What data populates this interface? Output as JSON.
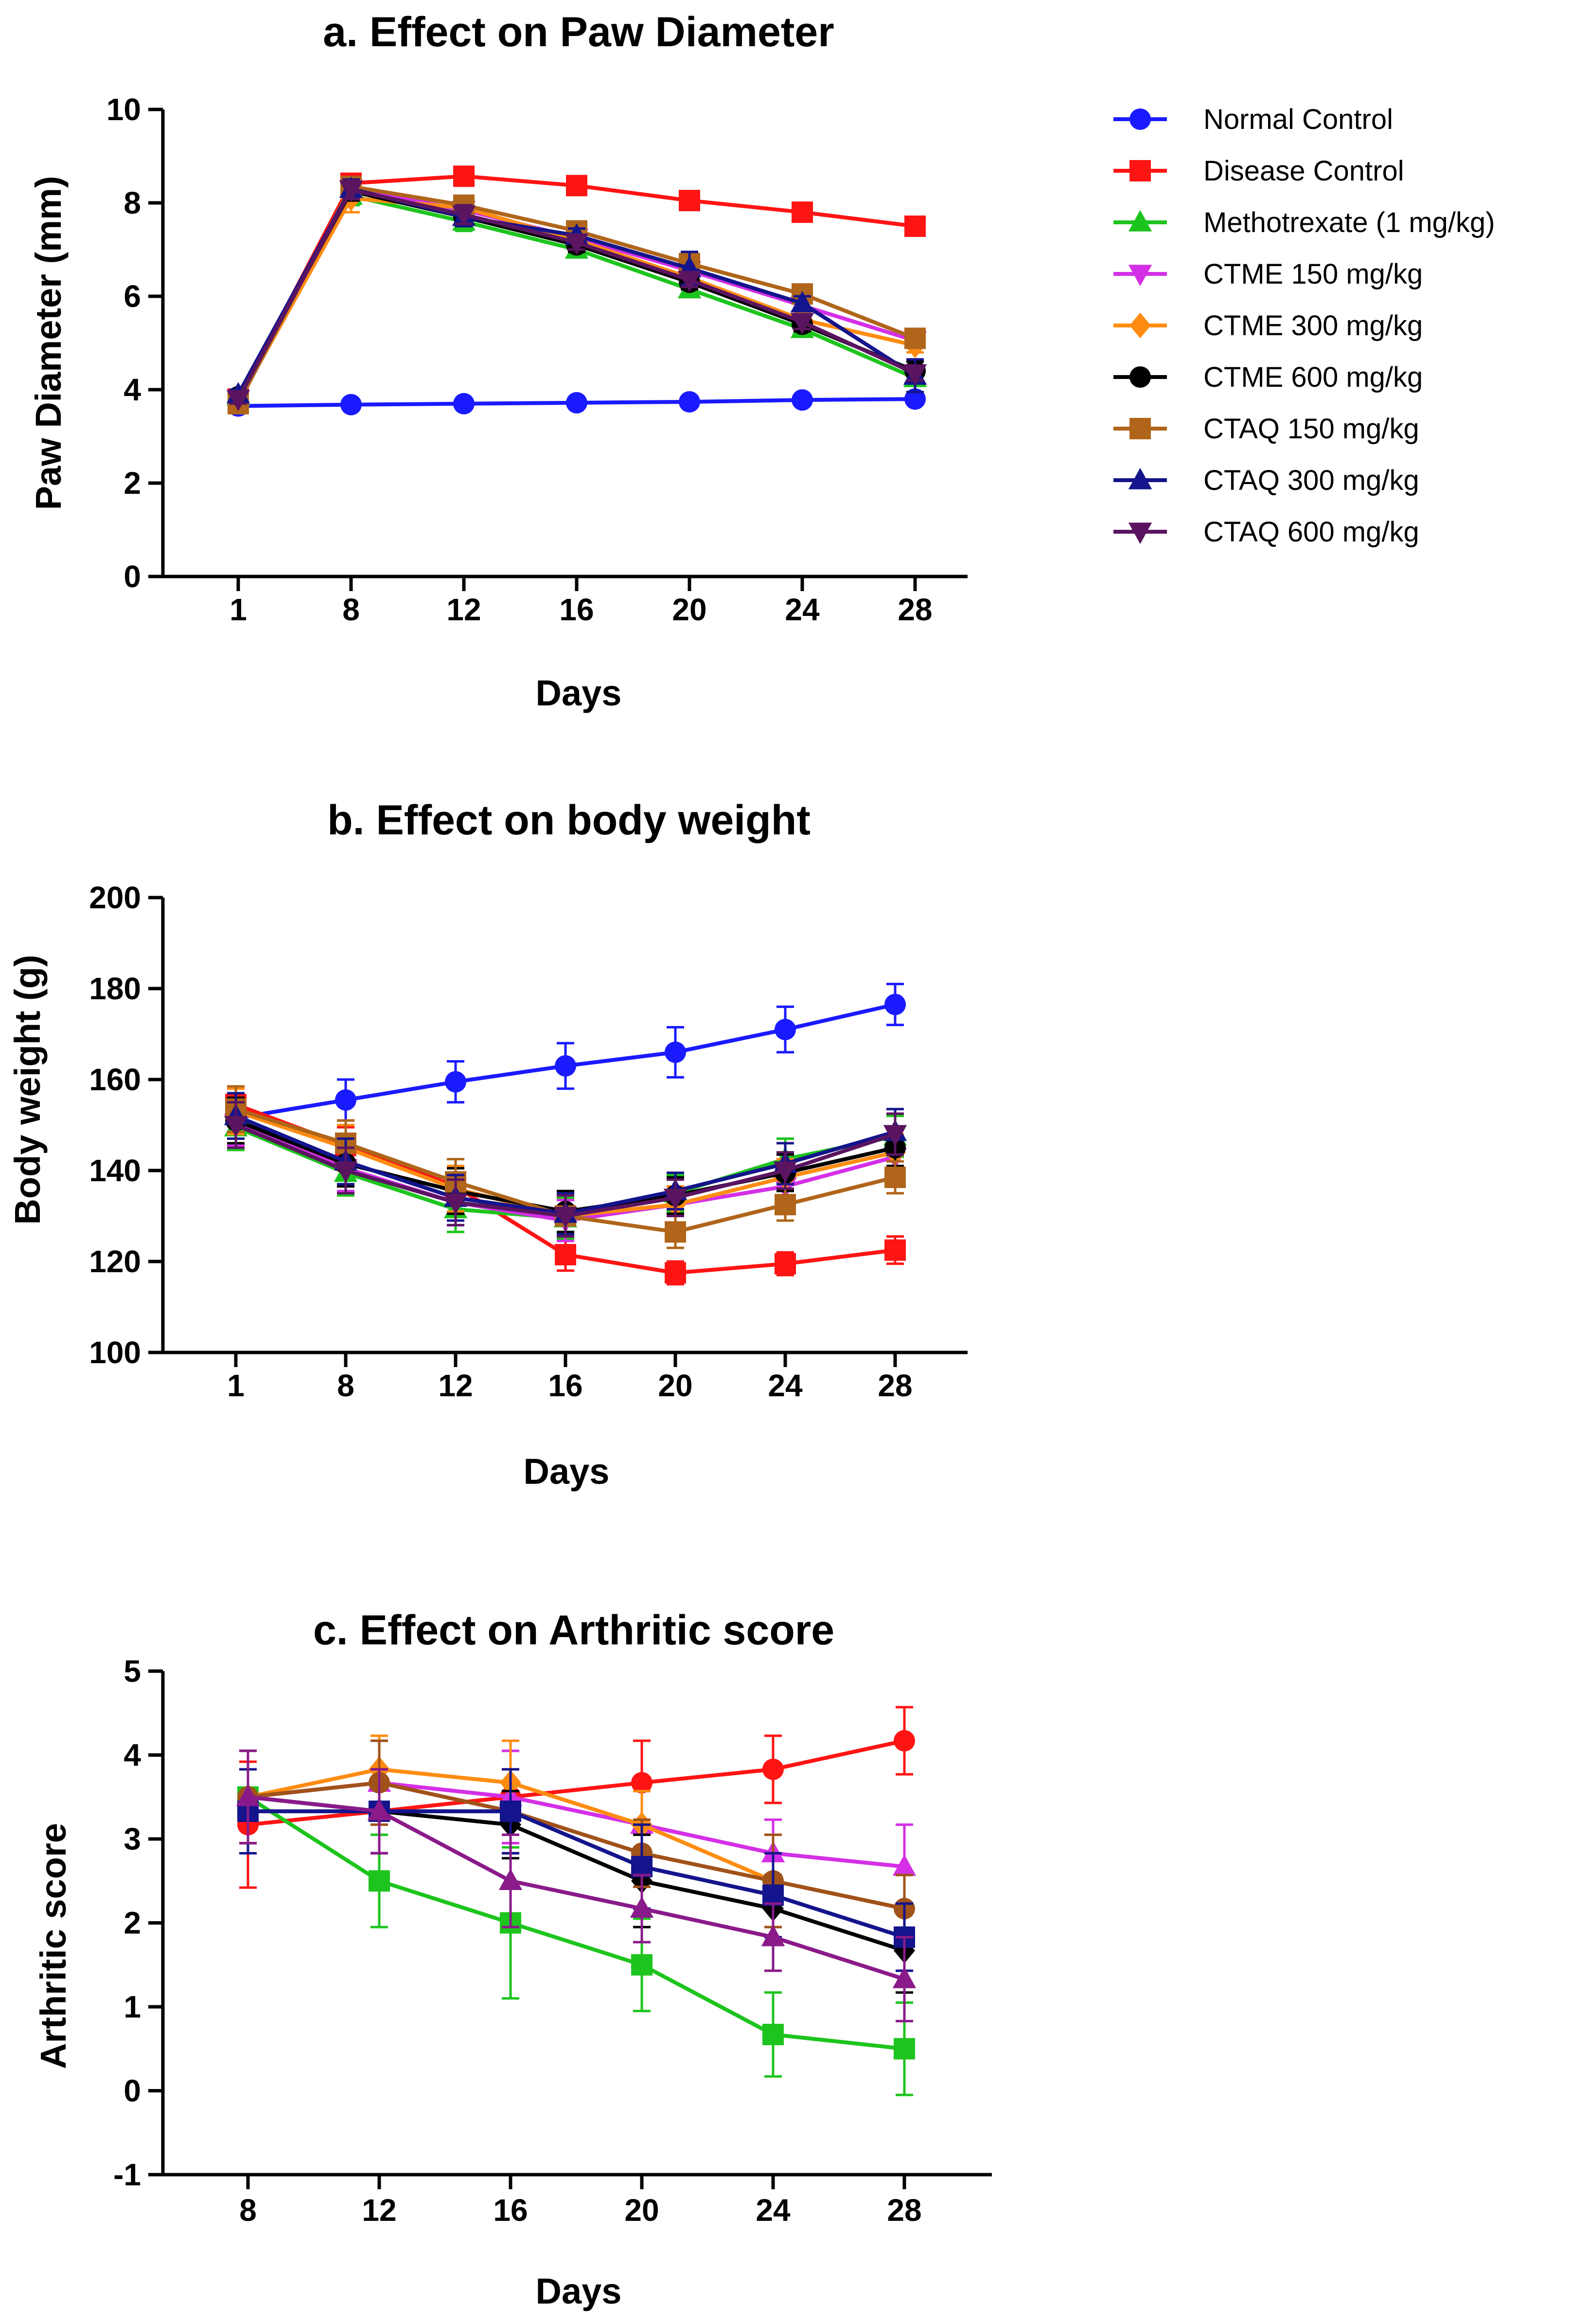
{
  "legend": [
    {
      "name": "Normal Control",
      "color": "#1a1aff",
      "marker": "circle"
    },
    {
      "name": "Disease Control",
      "color": "#ff1414",
      "marker": "square"
    },
    {
      "name": "Methotrexate (1 mg/kg)",
      "color": "#1ec41e",
      "marker": "triangle-up"
    },
    {
      "name": "CTME 150 mg/kg",
      "color": "#d42fe6",
      "marker": "triangle-down"
    },
    {
      "name": "CTME 300 mg/kg",
      "color": "#ff8c12",
      "marker": "diamond"
    },
    {
      "name": "CTME 600 mg/kg",
      "color": "#000000",
      "marker": "circle"
    },
    {
      "name": "CTAQ 150 mg/kg",
      "color": "#b0651a",
      "marker": "square"
    },
    {
      "name": "CTAQ 300 mg/kg",
      "color": "#14148c",
      "marker": "triangle-up"
    },
    {
      "name": "CTAQ 600 mg/kg",
      "color": "#5a1460",
      "marker": "triangle-down"
    }
  ],
  "chart_data": [
    {
      "type": "line",
      "title": "a. Effect on Paw Diameter",
      "xlabel": "Days",
      "ylabel": "Paw Diameter (mm)",
      "categories": [
        "1",
        "8",
        "12",
        "16",
        "20",
        "24",
        "28"
      ],
      "yticks": [
        "0",
        "2",
        "4",
        "6",
        "8",
        "10"
      ],
      "ylim": [
        0,
        10
      ],
      "series": [
        {
          "name": "Normal Control",
          "color": "#1a1aff",
          "marker": "circle",
          "values": [
            3.65,
            3.68,
            3.7,
            3.72,
            3.74,
            3.78,
            3.8
          ],
          "err": [
            0.05,
            0.05,
            0.05,
            0.05,
            0.05,
            0.05,
            0.05
          ]
        },
        {
          "name": "Disease Control",
          "color": "#ff1414",
          "marker": "square",
          "values": [
            3.8,
            8.42,
            8.57,
            8.37,
            8.05,
            7.8,
            7.5
          ],
          "err": [
            0.1,
            0.1,
            0.1,
            0.1,
            0.1,
            0.1,
            0.1
          ]
        },
        {
          "name": "Methotrexate (1 mg/kg)",
          "color": "#1ec41e",
          "marker": "triangle-up",
          "values": [
            3.85,
            8.15,
            7.6,
            7.0,
            6.15,
            5.3,
            4.25
          ],
          "err": [
            0.1,
            0.2,
            0.2,
            0.15,
            0.15,
            0.15,
            0.15
          ]
        },
        {
          "name": "CTME 150 mg/kg",
          "color": "#d42fe6",
          "marker": "triangle-down",
          "values": [
            3.8,
            8.3,
            7.85,
            7.25,
            6.55,
            5.8,
            5.05
          ],
          "err": [
            0.1,
            0.2,
            0.2,
            0.15,
            0.15,
            0.15,
            0.15
          ]
        },
        {
          "name": "CTME 300 mg/kg",
          "color": "#ff8c12",
          "marker": "diamond",
          "values": [
            3.75,
            8.1,
            7.9,
            7.2,
            6.4,
            5.5,
            4.95
          ],
          "err": [
            0.1,
            0.3,
            0.2,
            0.15,
            0.15,
            0.15,
            0.15
          ]
        },
        {
          "name": "CTME 600 mg/kg",
          "color": "#000000",
          "marker": "circle",
          "values": [
            3.85,
            8.25,
            7.7,
            7.1,
            6.3,
            5.4,
            4.4
          ],
          "err": [
            0.1,
            0.2,
            0.2,
            0.15,
            0.15,
            0.15,
            0.2
          ]
        },
        {
          "name": "CTAQ 150 mg/kg",
          "color": "#b0651a",
          "marker": "square",
          "values": [
            3.7,
            8.35,
            7.95,
            7.4,
            6.7,
            6.05,
            5.1
          ],
          "err": [
            0.1,
            0.2,
            0.2,
            0.15,
            0.15,
            0.15,
            0.15
          ]
        },
        {
          "name": "CTAQ 300 mg/kg",
          "color": "#14148c",
          "marker": "triangle-up",
          "values": [
            3.9,
            8.3,
            7.7,
            7.3,
            6.6,
            5.85,
            4.3
          ],
          "err": [
            0.1,
            0.2,
            0.2,
            0.15,
            0.35,
            0.15,
            0.35
          ]
        },
        {
          "name": "CTAQ 600 mg/kg",
          "color": "#5a1460",
          "marker": "triangle-down",
          "values": [
            3.8,
            8.28,
            7.75,
            7.15,
            6.35,
            5.45,
            4.35
          ],
          "err": [
            0.1,
            0.2,
            0.2,
            0.15,
            0.15,
            0.15,
            0.15
          ]
        }
      ]
    },
    {
      "type": "line",
      "title": "b. Effect on body weight",
      "xlabel": "Days",
      "ylabel": "Body weight (g)",
      "categories": [
        "1",
        "8",
        "12",
        "16",
        "20",
        "24",
        "28"
      ],
      "yticks": [
        "100",
        "120",
        "140",
        "160",
        "180",
        "200"
      ],
      "ylim": [
        100,
        200
      ],
      "series": [
        {
          "name": "Normal Control",
          "color": "#1a1aff",
          "marker": "circle",
          "values": [
            151.5,
            155.5,
            159.5,
            163.0,
            166.0,
            171.0,
            176.5
          ],
          "err": [
            4.5,
            4.5,
            4.5,
            5.0,
            5.5,
            5.0,
            4.5
          ]
        },
        {
          "name": "Disease Control",
          "color": "#ff1414",
          "marker": "square",
          "values": [
            154.5,
            145.5,
            136.5,
            121.5,
            117.5,
            119.5,
            122.5
          ],
          "err": [
            4.0,
            4.0,
            4.0,
            3.5,
            2.5,
            2.5,
            3.0
          ]
        },
        {
          "name": "Methotrexate (1 mg/kg)",
          "color": "#1ec41e",
          "marker": "triangle-up",
          "values": [
            149.5,
            139.5,
            131.5,
            129.5,
            135.0,
            142.5,
            147.5
          ],
          "err": [
            5.0,
            5.0,
            5.0,
            4.5,
            4.0,
            4.5,
            4.5
          ]
        },
        {
          "name": "CTME 150 mg/kg",
          "color": "#d42fe6",
          "marker": "triangle-down",
          "values": [
            150.5,
            140.5,
            133.0,
            129.0,
            132.5,
            136.5,
            143.0
          ],
          "err": [
            5.0,
            5.0,
            5.0,
            4.5,
            4.0,
            4.0,
            4.0
          ]
        },
        {
          "name": "CTME 300 mg/kg",
          "color": "#ff8c12",
          "marker": "diamond",
          "values": [
            153.0,
            145.0,
            136.0,
            130.0,
            132.5,
            138.5,
            144.0
          ],
          "err": [
            5.0,
            5.0,
            5.0,
            4.5,
            4.0,
            4.0,
            4.0
          ]
        },
        {
          "name": "CTME 600 mg/kg",
          "color": "#000000",
          "marker": "circle",
          "values": [
            151.0,
            141.5,
            135.5,
            131.0,
            134.5,
            139.5,
            145.0
          ],
          "err": [
            5.0,
            5.0,
            5.0,
            4.5,
            4.0,
            4.0,
            4.0
          ]
        },
        {
          "name": "CTAQ 150 mg/kg",
          "color": "#b0651a",
          "marker": "square",
          "values": [
            153.5,
            146.0,
            137.5,
            130.0,
            126.5,
            132.5,
            138.5
          ],
          "err": [
            5.0,
            5.0,
            5.0,
            4.5,
            3.5,
            3.5,
            3.5
          ]
        },
        {
          "name": "CTAQ 300 mg/kg",
          "color": "#14148c",
          "marker": "triangle-up",
          "values": [
            152.0,
            142.0,
            134.0,
            130.5,
            135.5,
            141.5,
            148.5
          ],
          "err": [
            5.0,
            5.0,
            5.0,
            4.5,
            4.0,
            4.5,
            5.0
          ]
        },
        {
          "name": "CTAQ 600 mg/kg",
          "color": "#5a1460",
          "marker": "triangle-down",
          "values": [
            150.0,
            140.0,
            133.0,
            130.0,
            134.0,
            140.0,
            148.0
          ],
          "err": [
            5.0,
            5.0,
            5.0,
            4.5,
            4.0,
            4.0,
            4.5
          ]
        }
      ]
    },
    {
      "type": "line",
      "title": "c. Effect on Arthritic score",
      "xlabel": "Days",
      "ylabel": "Arthritic score",
      "categories": [
        "8",
        "12",
        "16",
        "20",
        "24",
        "28"
      ],
      "yticks": [
        "-1",
        "0",
        "1",
        "2",
        "3",
        "4",
        "5"
      ],
      "ylim": [
        -1,
        5
      ],
      "series": [
        {
          "name": "Disease Control",
          "color": "#ff1414",
          "marker": "circle",
          "values": [
            3.17,
            3.33,
            3.5,
            3.67,
            3.83,
            4.17
          ],
          "err": [
            0.75,
            0.5,
            0.55,
            0.5,
            0.4,
            0.4
          ]
        },
        {
          "name": "Methotrexate (1 mg/kg)",
          "color": "#1ec41e",
          "marker": "square",
          "values": [
            3.5,
            2.5,
            2.0,
            1.5,
            0.67,
            0.5
          ],
          "err": [
            0.55,
            0.55,
            0.9,
            0.55,
            0.5,
            0.55
          ]
        },
        {
          "name": "CTME 150 mg/kg",
          "color": "#d42fe6",
          "marker": "triangle-up",
          "values": [
            3.5,
            3.67,
            3.5,
            3.17,
            2.83,
            2.67
          ],
          "err": [
            0.55,
            0.5,
            0.55,
            0.4,
            0.4,
            0.5
          ]
        },
        {
          "name": "CTME 300 mg/kg",
          "color": "#ff8c12",
          "marker": "diamond",
          "values": [
            3.5,
            3.83,
            3.67,
            3.17,
            2.5,
            2.17
          ],
          "err": [
            0.55,
            0.4,
            0.5,
            0.4,
            0.55,
            0.4
          ]
        },
        {
          "name": "CTME 600 mg/kg",
          "color": "#000000",
          "marker": "diamond",
          "values": [
            3.5,
            3.33,
            3.17,
            2.5,
            2.17,
            1.67
          ],
          "err": [
            0.55,
            0.5,
            0.4,
            0.55,
            0.4,
            0.5
          ]
        },
        {
          "name": "CTAQ 150 mg/kg",
          "color": "#a0521a",
          "marker": "circle",
          "values": [
            3.5,
            3.67,
            3.33,
            2.83,
            2.5,
            2.17
          ],
          "err": [
            0.55,
            0.5,
            0.5,
            0.4,
            0.55,
            0.4
          ]
        },
        {
          "name": "CTAQ 300 mg/kg",
          "color": "#14148c",
          "marker": "square",
          "values": [
            3.33,
            3.33,
            3.33,
            2.67,
            2.33,
            1.83
          ],
          "err": [
            0.5,
            0.5,
            0.5,
            0.5,
            0.5,
            0.4
          ]
        },
        {
          "name": "CTAQ 600 mg/kg",
          "color": "#8a1a8a",
          "marker": "triangle-up",
          "values": [
            3.5,
            3.33,
            2.5,
            2.17,
            1.83,
            1.33
          ],
          "err": [
            0.55,
            0.5,
            0.55,
            0.4,
            0.4,
            0.5
          ]
        }
      ]
    }
  ]
}
